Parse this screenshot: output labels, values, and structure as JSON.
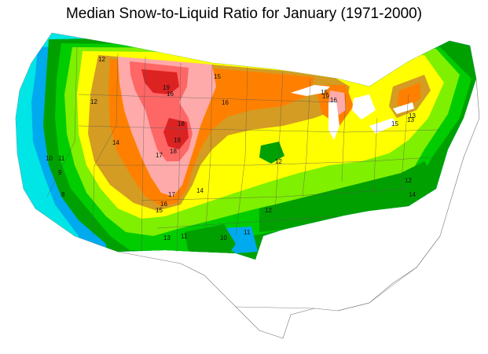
{
  "title": "Median Snow-to-Liquid Ratio for January (1971-2000)",
  "palette": {
    "r5": "#00e5e5",
    "r7": "#00aaee",
    "r9": "#00a000",
    "r10": "#00cc00",
    "r11": "#7ff000",
    "r12": "#ffff00",
    "r13": "#d49c22",
    "r15": "#ff8000",
    "r17": "#ffaaaa",
    "r18": "#ff6666",
    "r19": "#dd2222"
  },
  "contour_labels": [
    "8",
    "9",
    "10",
    "11",
    "11",
    "12",
    "12",
    "12",
    "12",
    "13",
    "13",
    "14",
    "14",
    "15",
    "15",
    "15",
    "15",
    "16",
    "16",
    "16",
    "16",
    "17",
    "17",
    "18",
    "18",
    "19",
    "19",
    "19",
    "10",
    "11",
    "12",
    "13",
    "14"
  ]
}
